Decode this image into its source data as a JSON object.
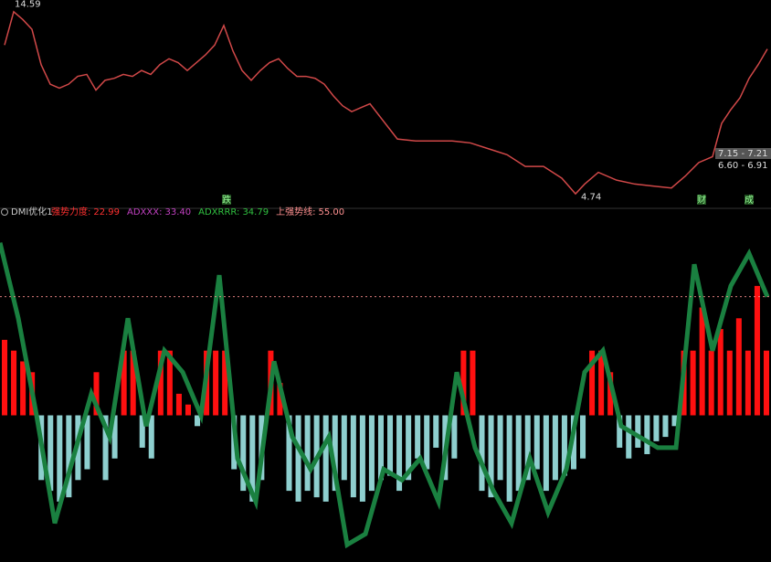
{
  "chart_data": [
    {
      "type": "line",
      "x": [
        5,
        15,
        25,
        35,
        45,
        55,
        65,
        75,
        85,
        95,
        105,
        115,
        125,
        135,
        145,
        155,
        165,
        175,
        185,
        195,
        205,
        215,
        225,
        235,
        245,
        255,
        265,
        275,
        285,
        295,
        305,
        315,
        325,
        335,
        345,
        355,
        365,
        375,
        385,
        395,
        405,
        435,
        455,
        475,
        495,
        515,
        535,
        555,
        575,
        595,
        615,
        630,
        640,
        655,
        675,
        695,
        715,
        735,
        750,
        765,
        780,
        790,
        800,
        810,
        820,
        830,
        840
      ],
      "values": [
        12.5,
        14.2,
        13.8,
        13.3,
        11.5,
        10.5,
        10.3,
        10.5,
        10.9,
        11.0,
        10.2,
        10.7,
        10.8,
        11.0,
        10.9,
        11.2,
        11.0,
        11.5,
        11.8,
        11.6,
        11.2,
        11.6,
        12.0,
        12.5,
        13.5,
        12.2,
        11.2,
        10.7,
        11.2,
        11.6,
        11.8,
        11.3,
        10.9,
        10.9,
        10.8,
        10.5,
        9.9,
        9.4,
        9.1,
        9.3,
        9.5,
        7.7,
        7.6,
        7.6,
        7.6,
        7.5,
        7.2,
        6.9,
        6.3,
        6.3,
        5.7,
        4.9,
        5.4,
        6.0,
        5.6,
        5.4,
        5.3,
        5.2,
        5.8,
        6.5,
        6.8,
        8.5,
        9.2,
        9.8,
        10.8,
        11.5,
        12.3
      ],
      "color": "#d04848",
      "xlim": [
        0,
        844
      ],
      "ylim": [
        4.3,
        14.8
      ],
      "annotations": [
        {
          "text": "14.59",
          "x": 12,
          "y": 14.59
        },
        {
          "text": "4.74",
          "x": 632,
          "y": 4.74
        }
      ],
      "markers": [
        {
          "text": "跌",
          "x": 248
        },
        {
          "text": "财",
          "x": 768
        },
        {
          "text": "成",
          "x": 820
        }
      ],
      "price_boxes": [
        "7.15 - 7.21",
        "6.60 - 6.91"
      ]
    },
    {
      "type": "bar",
      "title": "DMI优化1",
      "legend": [
        {
          "name": "强势力度:",
          "value": 22.99,
          "value_label": "22.99",
          "color": "#ff3030"
        },
        {
          "name": "ADXXX:",
          "value": 33.4,
          "value_label": "33.40",
          "color": "#c040c0"
        },
        {
          "name": "ADXRRR:",
          "value": 34.79,
          "value_label": "34.79",
          "color": "#30c040"
        },
        {
          "name": "上强势线:",
          "value": 55,
          "value_label": "55.00",
          "color": "#ff9090"
        }
      ],
      "values": [
        35,
        30,
        25,
        20,
        -30,
        -35,
        -40,
        -38,
        -30,
        -25,
        20,
        -30,
        -20,
        30,
        30,
        -15,
        -20,
        30,
        30,
        10,
        5,
        -5,
        30,
        30,
        30,
        -25,
        -35,
        -40,
        -30,
        30,
        15,
        -35,
        -40,
        -35,
        -38,
        -40,
        -35,
        -30,
        -38,
        -40,
        -35,
        -30,
        -28,
        -35,
        -30,
        -20,
        -25,
        -15,
        -30,
        -20,
        30,
        30,
        -35,
        -38,
        -30,
        -40,
        -35,
        -30,
        -25,
        -35,
        -30,
        -28,
        -25,
        -20,
        30,
        30,
        20,
        -15,
        -20,
        -15,
        -18,
        -12,
        -10,
        -5,
        30,
        30,
        50,
        30,
        40,
        30,
        45,
        30,
        60,
        30
      ],
      "pos_color": "#ff1010",
      "neg_color": "#8ecfcf",
      "lines": [
        {
          "color": "#1a8040",
          "x": [
            0,
            20,
            40,
            60,
            80,
            100,
            120,
            140,
            160,
            180,
            200,
            220,
            240,
            260,
            280,
            300,
            320,
            340,
            360,
            380,
            400,
            420,
            440,
            460,
            480,
            500,
            520,
            540,
            560,
            580,
            600,
            620,
            640,
            660,
            680,
            700,
            720,
            740,
            760,
            780,
            800,
            820,
            840
          ],
          "values": [
            80,
            45,
            0,
            -50,
            -20,
            10,
            -10,
            45,
            -5,
            30,
            20,
            0,
            65,
            -20,
            -40,
            25,
            -10,
            -25,
            -10,
            -60,
            -55,
            -25,
            -30,
            -20,
            -40,
            20,
            -15,
            -35,
            -50,
            -20,
            -45,
            -25,
            20,
            30,
            -5,
            -10,
            -15,
            -15,
            70,
            30,
            60,
            75,
            55
          ]
        }
      ],
      "xlim": [
        0,
        844
      ],
      "ylim": [
        -68,
        93
      ]
    }
  ]
}
